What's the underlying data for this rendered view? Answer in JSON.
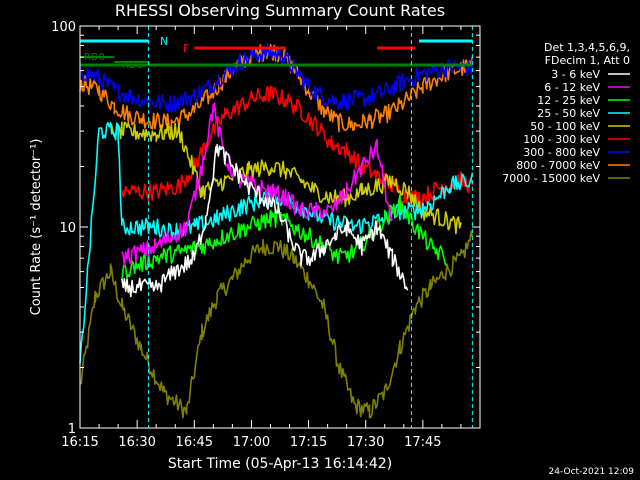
{
  "chart_data": {
    "type": "line",
    "title": "RHESSI Observing Summary Count Rates",
    "xlabel": "Start Time (05-Apr-13 16:14:42)",
    "ylabel": "Count Rate (s⁻¹ detector⁻¹)",
    "y_scale": "log",
    "ylim": [
      1,
      100
    ],
    "xlim_minutes_after_1615": [
      0,
      105
    ],
    "x_ticks": [
      "16:15",
      "16:30",
      "16:45",
      "17:00",
      "17:15",
      "17:30",
      "17:45"
    ],
    "y_ticks": [
      "1",
      "10",
      "100"
    ],
    "footer_date": "24-Oct-2021 12:09",
    "legend_header": [
      "Det 1,3,4,5,6,9,",
      "FDecim 1, Att 0"
    ],
    "annotations": [
      {
        "text": "N",
        "color": "#00ffff"
      },
      {
        "text": "F",
        "color": "#ff0000"
      },
      {
        "text": "RD0",
        "color": "#008000"
      },
      {
        "text": "RD0",
        "color": "#008000"
      }
    ],
    "series": [
      {
        "name": "3 - 6 keV",
        "color": "#ffffff",
        "values": [
          [
            0,
            null
          ],
          [
            5,
            null
          ],
          [
            11,
            5
          ],
          [
            20,
            5
          ],
          [
            25,
            6
          ],
          [
            30,
            7
          ],
          [
            33,
            11
          ],
          [
            36,
            25
          ],
          [
            40,
            20
          ],
          [
            44,
            16
          ],
          [
            48,
            14
          ],
          [
            52,
            12
          ],
          [
            55,
            9
          ],
          [
            58,
            7
          ],
          [
            61,
            7
          ],
          [
            64,
            8
          ],
          [
            67,
            9
          ],
          [
            70,
            10
          ],
          [
            74,
            8
          ],
          [
            78,
            10
          ],
          [
            82,
            7
          ],
          [
            86,
            5
          ],
          [
            88,
            null
          ]
        ]
      },
      {
        "name": "6 - 12 keV",
        "color": "#ff00ff",
        "values": [
          [
            11,
            7
          ],
          [
            20,
            8
          ],
          [
            28,
            10
          ],
          [
            32,
            20
          ],
          [
            35,
            40
          ],
          [
            38,
            22
          ],
          [
            42,
            17
          ],
          [
            46,
            16
          ],
          [
            50,
            15
          ],
          [
            54,
            14
          ],
          [
            58,
            12
          ],
          [
            62,
            12
          ],
          [
            66,
            12
          ],
          [
            70,
            15
          ],
          [
            74,
            20
          ],
          [
            78,
            25
          ],
          [
            82,
            10
          ],
          [
            86,
            null
          ]
        ]
      },
      {
        "name": "12 - 25 keV",
        "color": "#00ff00",
        "values": [
          [
            11,
            6
          ],
          [
            20,
            7
          ],
          [
            26,
            7.5
          ],
          [
            32,
            8
          ],
          [
            38,
            9
          ],
          [
            44,
            10
          ],
          [
            50,
            11
          ],
          [
            53,
            11
          ],
          [
            56,
            10
          ],
          [
            60,
            9
          ],
          [
            64,
            8
          ],
          [
            68,
            7
          ],
          [
            72,
            7.5
          ],
          [
            76,
            9
          ],
          [
            80,
            11
          ],
          [
            84,
            13
          ],
          [
            88,
            10
          ],
          [
            92,
            8
          ],
          [
            96,
            7
          ]
        ]
      },
      {
        "name": "25 - 50 keV",
        "color": "#00ffff",
        "values": [
          [
            0,
            2
          ],
          [
            5,
            30
          ],
          [
            10,
            30
          ],
          [
            11,
            10
          ],
          [
            20,
            10
          ],
          [
            24,
            9.5
          ],
          [
            30,
            10
          ],
          [
            36,
            11
          ],
          [
            42,
            12.5
          ],
          [
            47,
            13.5
          ],
          [
            50,
            14
          ],
          [
            53,
            14
          ],
          [
            56,
            13
          ],
          [
            60,
            12
          ],
          [
            64,
            11
          ],
          [
            68,
            10.5
          ],
          [
            72,
            10
          ],
          [
            76,
            10.5
          ],
          [
            80,
            11
          ],
          [
            84,
            12
          ],
          [
            88,
            12
          ],
          [
            92,
            13
          ],
          [
            97,
            16
          ],
          [
            103,
            17
          ]
        ]
      },
      {
        "name": "50 - 100 keV",
        "color": "#cccc00",
        "values": [
          [
            8,
            30
          ],
          [
            11,
            30
          ],
          [
            20,
            29
          ],
          [
            26,
            30
          ],
          [
            32,
            15
          ],
          [
            38,
            17
          ],
          [
            44,
            19
          ],
          [
            50,
            20
          ],
          [
            54,
            19
          ],
          [
            58,
            17
          ],
          [
            62,
            15
          ],
          [
            66,
            14
          ],
          [
            70,
            14
          ],
          [
            74,
            15
          ],
          [
            78,
            16
          ],
          [
            82,
            17
          ],
          [
            86,
            15
          ],
          [
            90,
            12
          ],
          [
            95,
            11
          ],
          [
            100,
            10
          ]
        ]
      },
      {
        "name": "100 - 300 keV",
        "color": "#ff0000",
        "values": [
          [
            11,
            15
          ],
          [
            20,
            15
          ],
          [
            26,
            16
          ],
          [
            30,
            20
          ],
          [
            34,
            28
          ],
          [
            38,
            36
          ],
          [
            42,
            40
          ],
          [
            46,
            44
          ],
          [
            50,
            46
          ],
          [
            54,
            43
          ],
          [
            58,
            38
          ],
          [
            62,
            32
          ],
          [
            66,
            26
          ],
          [
            70,
            24
          ],
          [
            74,
            20
          ],
          [
            78,
            18
          ],
          [
            82,
            16
          ],
          [
            86,
            14
          ],
          [
            90,
            14
          ],
          [
            95,
            16
          ],
          [
            100,
            17
          ],
          [
            103,
            16
          ]
        ]
      },
      {
        "name": "300 - 800 keV",
        "color": "#0000ff",
        "values": [
          [
            0,
            60
          ],
          [
            5,
            55
          ],
          [
            9,
            48
          ],
          [
            13,
            45
          ],
          [
            18,
            42
          ],
          [
            24,
            41
          ],
          [
            30,
            45
          ],
          [
            34,
            50
          ],
          [
            38,
            58
          ],
          [
            42,
            66
          ],
          [
            46,
            72
          ],
          [
            50,
            74
          ],
          [
            53,
            71
          ],
          [
            56,
            62
          ],
          [
            60,
            50
          ],
          [
            64,
            44
          ],
          [
            68,
            42
          ],
          [
            72,
            43
          ],
          [
            76,
            44
          ],
          [
            80,
            47
          ],
          [
            84,
            52
          ],
          [
            90,
            58
          ],
          [
            96,
            62
          ],
          [
            103,
            62
          ]
        ]
      },
      {
        "name": "800 - 7000 keV",
        "color": "#ff8000",
        "values": [
          [
            0,
            52
          ],
          [
            5,
            48
          ],
          [
            9,
            40
          ],
          [
            13,
            36
          ],
          [
            18,
            34
          ],
          [
            24,
            33
          ],
          [
            30,
            38
          ],
          [
            34,
            45
          ],
          [
            38,
            55
          ],
          [
            42,
            66
          ],
          [
            46,
            72
          ],
          [
            50,
            76
          ],
          [
            53,
            72
          ],
          [
            56,
            62
          ],
          [
            60,
            48
          ],
          [
            64,
            38
          ],
          [
            68,
            33
          ],
          [
            72,
            32
          ],
          [
            76,
            34
          ],
          [
            80,
            36
          ],
          [
            84,
            40
          ],
          [
            90,
            50
          ],
          [
            96,
            58
          ],
          [
            103,
            64
          ]
        ]
      },
      {
        "name": "7000 - 15000 keV",
        "color": "#808000",
        "values": [
          [
            0,
            1.6
          ],
          [
            4,
            4.5
          ],
          [
            8,
            6
          ],
          [
            11,
            4
          ],
          [
            16,
            2.5
          ],
          [
            22,
            1.5
          ],
          [
            28,
            1.2
          ],
          [
            32,
            3
          ],
          [
            36,
            4.5
          ],
          [
            40,
            5.5
          ],
          [
            44,
            7
          ],
          [
            48,
            8
          ],
          [
            52,
            8
          ],
          [
            56,
            7
          ],
          [
            60,
            5.5
          ],
          [
            64,
            4
          ],
          [
            68,
            2
          ],
          [
            72,
            1.3
          ],
          [
            76,
            1.2
          ],
          [
            80,
            1.5
          ],
          [
            84,
            2.5
          ],
          [
            88,
            4
          ],
          [
            92,
            5
          ],
          [
            96,
            6
          ],
          [
            100,
            7
          ],
          [
            103,
            9
          ]
        ]
      }
    ]
  }
}
